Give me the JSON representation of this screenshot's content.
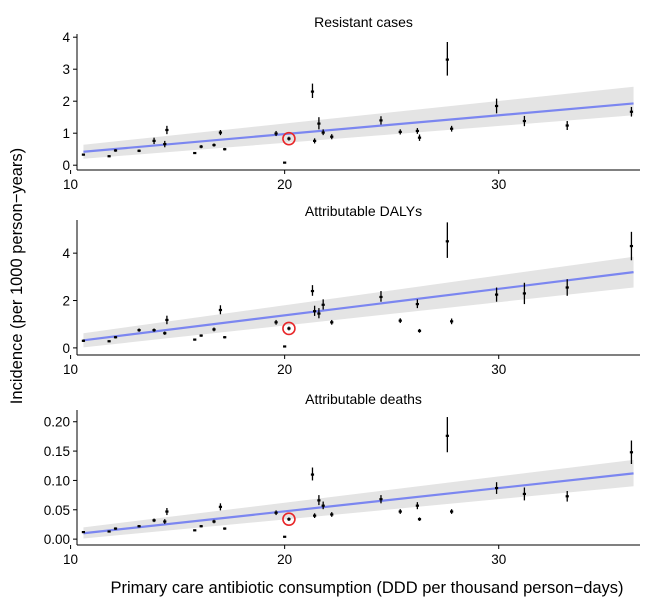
{
  "figure": {
    "ylabel": "Incidence (per 1000 person−years)",
    "xlabel": "Primary care antibiotic consumption (DDD per thousand person−days)"
  },
  "colors": {
    "fit_line": "#7B86F0",
    "ribbon": "#E4E4E4",
    "points": "#000000",
    "highlight": "#E8272A"
  },
  "chart_data": [
    {
      "type": "scatter",
      "title": "Resistant cases",
      "xlim": [
        10.3,
        36.6
      ],
      "ylim": [
        -0.15,
        4.1
      ],
      "x_ticks": [
        10,
        20,
        30
      ],
      "y_ticks": [
        0,
        1,
        2,
        3,
        4
      ],
      "y_tick_labels": [
        "0",
        "1",
        "2",
        "3",
        "4"
      ],
      "fit": {
        "x": [
          10.6,
          36.3
        ],
        "y": [
          0.42,
          1.93
        ],
        "ci_lo": [
          0.2,
          1.56
        ],
        "ci_hi": [
          0.64,
          2.45
        ]
      },
      "highlight": {
        "x": 20.2,
        "y": 0.83
      },
      "points": [
        {
          "x": 10.6,
          "y": 0.33,
          "lo": 0.3,
          "hi": 0.36
        },
        {
          "x": 11.8,
          "y": 0.28,
          "lo": 0.25,
          "hi": 0.31
        },
        {
          "x": 12.1,
          "y": 0.46,
          "lo": 0.42,
          "hi": 0.5
        },
        {
          "x": 13.2,
          "y": 0.45,
          "lo": 0.41,
          "hi": 0.49
        },
        {
          "x": 13.9,
          "y": 0.76,
          "lo": 0.66,
          "hi": 0.86
        },
        {
          "x": 14.4,
          "y": 0.66,
          "lo": 0.56,
          "hi": 0.76
        },
        {
          "x": 14.5,
          "y": 1.1,
          "lo": 0.97,
          "hi": 1.23
        },
        {
          "x": 15.8,
          "y": 0.38,
          "lo": 0.35,
          "hi": 0.41
        },
        {
          "x": 16.1,
          "y": 0.58,
          "lo": 0.53,
          "hi": 0.63
        },
        {
          "x": 16.7,
          "y": 0.63,
          "lo": 0.58,
          "hi": 0.68
        },
        {
          "x": 17.0,
          "y": 1.02,
          "lo": 0.94,
          "hi": 1.1
        },
        {
          "x": 17.2,
          "y": 0.5,
          "lo": 0.46,
          "hi": 0.54
        },
        {
          "x": 19.6,
          "y": 0.99,
          "lo": 0.91,
          "hi": 1.07
        },
        {
          "x": 20.0,
          "y": 0.08,
          "lo": 0.07,
          "hi": 0.09
        },
        {
          "x": 20.2,
          "y": 0.83,
          "lo": 0.77,
          "hi": 0.89
        },
        {
          "x": 21.3,
          "y": 2.3,
          "lo": 2.1,
          "hi": 2.55
        },
        {
          "x": 21.4,
          "y": 0.76,
          "lo": 0.68,
          "hi": 0.84
        },
        {
          "x": 21.6,
          "y": 1.3,
          "lo": 1.12,
          "hi": 1.5
        },
        {
          "x": 21.8,
          "y": 1.02,
          "lo": 0.94,
          "hi": 1.12
        },
        {
          "x": 22.2,
          "y": 0.89,
          "lo": 0.81,
          "hi": 0.97
        },
        {
          "x": 24.5,
          "y": 1.4,
          "lo": 1.27,
          "hi": 1.53
        },
        {
          "x": 25.4,
          "y": 1.04,
          "lo": 0.96,
          "hi": 1.12
        },
        {
          "x": 26.2,
          "y": 1.07,
          "lo": 0.98,
          "hi": 1.16
        },
        {
          "x": 26.3,
          "y": 0.86,
          "lo": 0.76,
          "hi": 0.96
        },
        {
          "x": 27.6,
          "y": 3.3,
          "lo": 2.8,
          "hi": 3.85
        },
        {
          "x": 27.8,
          "y": 1.14,
          "lo": 1.05,
          "hi": 1.23
        },
        {
          "x": 29.9,
          "y": 1.85,
          "lo": 1.62,
          "hi": 2.08
        },
        {
          "x": 31.2,
          "y": 1.38,
          "lo": 1.22,
          "hi": 1.54
        },
        {
          "x": 33.2,
          "y": 1.24,
          "lo": 1.1,
          "hi": 1.38
        },
        {
          "x": 36.2,
          "y": 1.67,
          "lo": 1.52,
          "hi": 1.82
        }
      ]
    },
    {
      "type": "scatter",
      "title": "Attributable DALYs",
      "xlim": [
        10.3,
        36.6
      ],
      "ylim": [
        -0.3,
        5.4
      ],
      "x_ticks": [
        10,
        20,
        30
      ],
      "y_ticks": [
        0,
        2,
        4
      ],
      "y_tick_labels": [
        "0",
        "2",
        "4"
      ],
      "fit": {
        "x": [
          10.6,
          36.3
        ],
        "y": [
          0.32,
          3.2
        ],
        "ci_lo": [
          0.02,
          2.55
        ],
        "ci_hi": [
          0.62,
          3.85
        ]
      },
      "highlight": {
        "x": 20.2,
        "y": 0.82
      },
      "points": [
        {
          "x": 10.6,
          "y": 0.3,
          "lo": 0.25,
          "hi": 0.35
        },
        {
          "x": 11.8,
          "y": 0.28,
          "lo": 0.24,
          "hi": 0.32
        },
        {
          "x": 12.1,
          "y": 0.45,
          "lo": 0.4,
          "hi": 0.5
        },
        {
          "x": 13.2,
          "y": 0.75,
          "lo": 0.68,
          "hi": 0.82
        },
        {
          "x": 13.9,
          "y": 0.75,
          "lo": 0.68,
          "hi": 0.82
        },
        {
          "x": 14.4,
          "y": 0.62,
          "lo": 0.55,
          "hi": 0.69
        },
        {
          "x": 14.5,
          "y": 1.18,
          "lo": 1.0,
          "hi": 1.36
        },
        {
          "x": 15.8,
          "y": 0.35,
          "lo": 0.31,
          "hi": 0.39
        },
        {
          "x": 16.1,
          "y": 0.52,
          "lo": 0.47,
          "hi": 0.57
        },
        {
          "x": 16.7,
          "y": 0.78,
          "lo": 0.7,
          "hi": 0.86
        },
        {
          "x": 17.0,
          "y": 1.6,
          "lo": 1.42,
          "hi": 1.8
        },
        {
          "x": 17.2,
          "y": 0.45,
          "lo": 0.4,
          "hi": 0.5
        },
        {
          "x": 19.6,
          "y": 1.08,
          "lo": 0.98,
          "hi": 1.18
        },
        {
          "x": 20.0,
          "y": 0.06,
          "lo": 0.05,
          "hi": 0.07
        },
        {
          "x": 20.2,
          "y": 0.82,
          "lo": 0.74,
          "hi": 0.9
        },
        {
          "x": 21.3,
          "y": 2.4,
          "lo": 2.2,
          "hi": 2.65
        },
        {
          "x": 21.4,
          "y": 1.55,
          "lo": 1.35,
          "hi": 1.78
        },
        {
          "x": 21.6,
          "y": 1.45,
          "lo": 1.25,
          "hi": 1.68
        },
        {
          "x": 21.8,
          "y": 1.82,
          "lo": 1.62,
          "hi": 2.05
        },
        {
          "x": 22.2,
          "y": 1.08,
          "lo": 0.98,
          "hi": 1.18
        },
        {
          "x": 24.5,
          "y": 2.15,
          "lo": 1.95,
          "hi": 2.4
        },
        {
          "x": 25.4,
          "y": 1.15,
          "lo": 1.05,
          "hi": 1.25
        },
        {
          "x": 26.2,
          "y": 1.85,
          "lo": 1.68,
          "hi": 2.05
        },
        {
          "x": 26.3,
          "y": 0.72,
          "lo": 0.64,
          "hi": 0.8
        },
        {
          "x": 27.6,
          "y": 4.5,
          "lo": 3.8,
          "hi": 5.3
        },
        {
          "x": 27.8,
          "y": 1.12,
          "lo": 1.0,
          "hi": 1.24
        },
        {
          "x": 29.9,
          "y": 2.25,
          "lo": 1.95,
          "hi": 2.55
        },
        {
          "x": 31.2,
          "y": 2.3,
          "lo": 1.85,
          "hi": 2.75
        },
        {
          "x": 33.2,
          "y": 2.55,
          "lo": 2.2,
          "hi": 2.9
        },
        {
          "x": 36.2,
          "y": 4.3,
          "lo": 3.7,
          "hi": 4.9
        }
      ]
    },
    {
      "type": "scatter",
      "title": "Attributable deaths",
      "xlim": [
        10.3,
        36.6
      ],
      "ylim": [
        -0.01,
        0.22
      ],
      "x_ticks": [
        10,
        20,
        30
      ],
      "y_ticks": [
        0,
        0.05,
        0.1,
        0.15,
        0.2
      ],
      "y_tick_labels": [
        "0.00",
        "0.05",
        "0.10",
        "0.15",
        "0.20"
      ],
      "fit": {
        "x": [
          10.6,
          36.3
        ],
        "y": [
          0.01,
          0.112
        ],
        "ci_lo": [
          0.001,
          0.09
        ],
        "ci_hi": [
          0.02,
          0.135
        ]
      },
      "highlight": {
        "x": 20.2,
        "y": 0.034
      },
      "points": [
        {
          "x": 10.6,
          "y": 0.012,
          "lo": 0.011,
          "hi": 0.013
        },
        {
          "x": 11.8,
          "y": 0.013,
          "lo": 0.012,
          "hi": 0.014
        },
        {
          "x": 12.1,
          "y": 0.018,
          "lo": 0.016,
          "hi": 0.02
        },
        {
          "x": 13.2,
          "y": 0.022,
          "lo": 0.02,
          "hi": 0.024
        },
        {
          "x": 13.9,
          "y": 0.032,
          "lo": 0.029,
          "hi": 0.035
        },
        {
          "x": 14.4,
          "y": 0.03,
          "lo": 0.026,
          "hi": 0.034
        },
        {
          "x": 14.5,
          "y": 0.047,
          "lo": 0.041,
          "hi": 0.053
        },
        {
          "x": 15.8,
          "y": 0.015,
          "lo": 0.014,
          "hi": 0.016
        },
        {
          "x": 16.1,
          "y": 0.022,
          "lo": 0.02,
          "hi": 0.024
        },
        {
          "x": 16.7,
          "y": 0.03,
          "lo": 0.027,
          "hi": 0.033
        },
        {
          "x": 17.0,
          "y": 0.055,
          "lo": 0.049,
          "hi": 0.061
        },
        {
          "x": 17.2,
          "y": 0.018,
          "lo": 0.016,
          "hi": 0.02
        },
        {
          "x": 19.6,
          "y": 0.045,
          "lo": 0.041,
          "hi": 0.049
        },
        {
          "x": 20.0,
          "y": 0.004,
          "lo": 0.0035,
          "hi": 0.0045
        },
        {
          "x": 20.2,
          "y": 0.034,
          "lo": 0.031,
          "hi": 0.037
        },
        {
          "x": 21.3,
          "y": 0.11,
          "lo": 0.1,
          "hi": 0.122
        },
        {
          "x": 21.4,
          "y": 0.04,
          "lo": 0.036,
          "hi": 0.044
        },
        {
          "x": 21.6,
          "y": 0.066,
          "lo": 0.058,
          "hi": 0.075
        },
        {
          "x": 21.8,
          "y": 0.057,
          "lo": 0.051,
          "hi": 0.064
        },
        {
          "x": 22.2,
          "y": 0.042,
          "lo": 0.038,
          "hi": 0.046
        },
        {
          "x": 24.5,
          "y": 0.068,
          "lo": 0.061,
          "hi": 0.075
        },
        {
          "x": 25.4,
          "y": 0.047,
          "lo": 0.043,
          "hi": 0.051
        },
        {
          "x": 26.2,
          "y": 0.057,
          "lo": 0.051,
          "hi": 0.063
        },
        {
          "x": 26.3,
          "y": 0.034,
          "lo": 0.031,
          "hi": 0.037
        },
        {
          "x": 27.6,
          "y": 0.176,
          "lo": 0.148,
          "hi": 0.208
        },
        {
          "x": 27.8,
          "y": 0.047,
          "lo": 0.043,
          "hi": 0.051
        },
        {
          "x": 29.9,
          "y": 0.087,
          "lo": 0.077,
          "hi": 0.097
        },
        {
          "x": 31.2,
          "y": 0.077,
          "lo": 0.066,
          "hi": 0.088
        },
        {
          "x": 33.2,
          "y": 0.073,
          "lo": 0.064,
          "hi": 0.082
        },
        {
          "x": 36.2,
          "y": 0.148,
          "lo": 0.128,
          "hi": 0.168
        }
      ]
    }
  ]
}
